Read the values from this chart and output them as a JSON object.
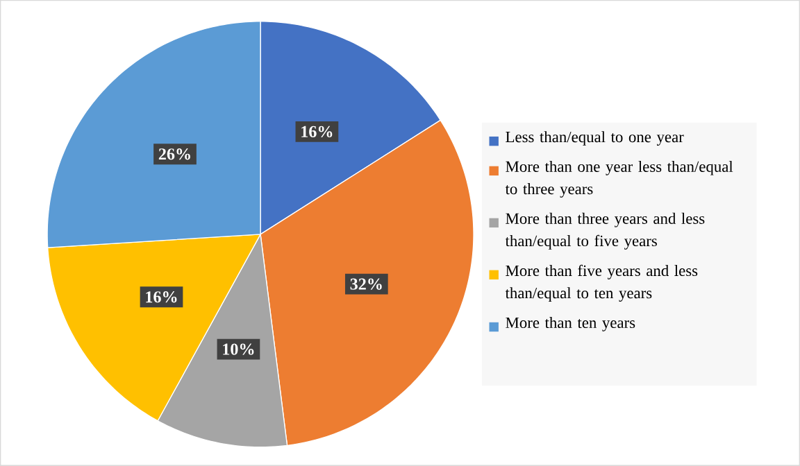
{
  "chart_data": {
    "type": "pie",
    "categories": [
      "Less than/equal to one year",
      "More than one year less than/equal to three years",
      "More than three years and less than/equal to five years",
      "More than five years and less than/equal to ten years",
      "More than ten years"
    ],
    "values": [
      16,
      32,
      10,
      16,
      26
    ],
    "value_labels": [
      "16%",
      "32%",
      "10%",
      "16%",
      "26%"
    ],
    "colors": [
      "#4472c4",
      "#ed7d31",
      "#a5a5a5",
      "#ffc000",
      "#5b9bd5"
    ],
    "legend": "right"
  }
}
